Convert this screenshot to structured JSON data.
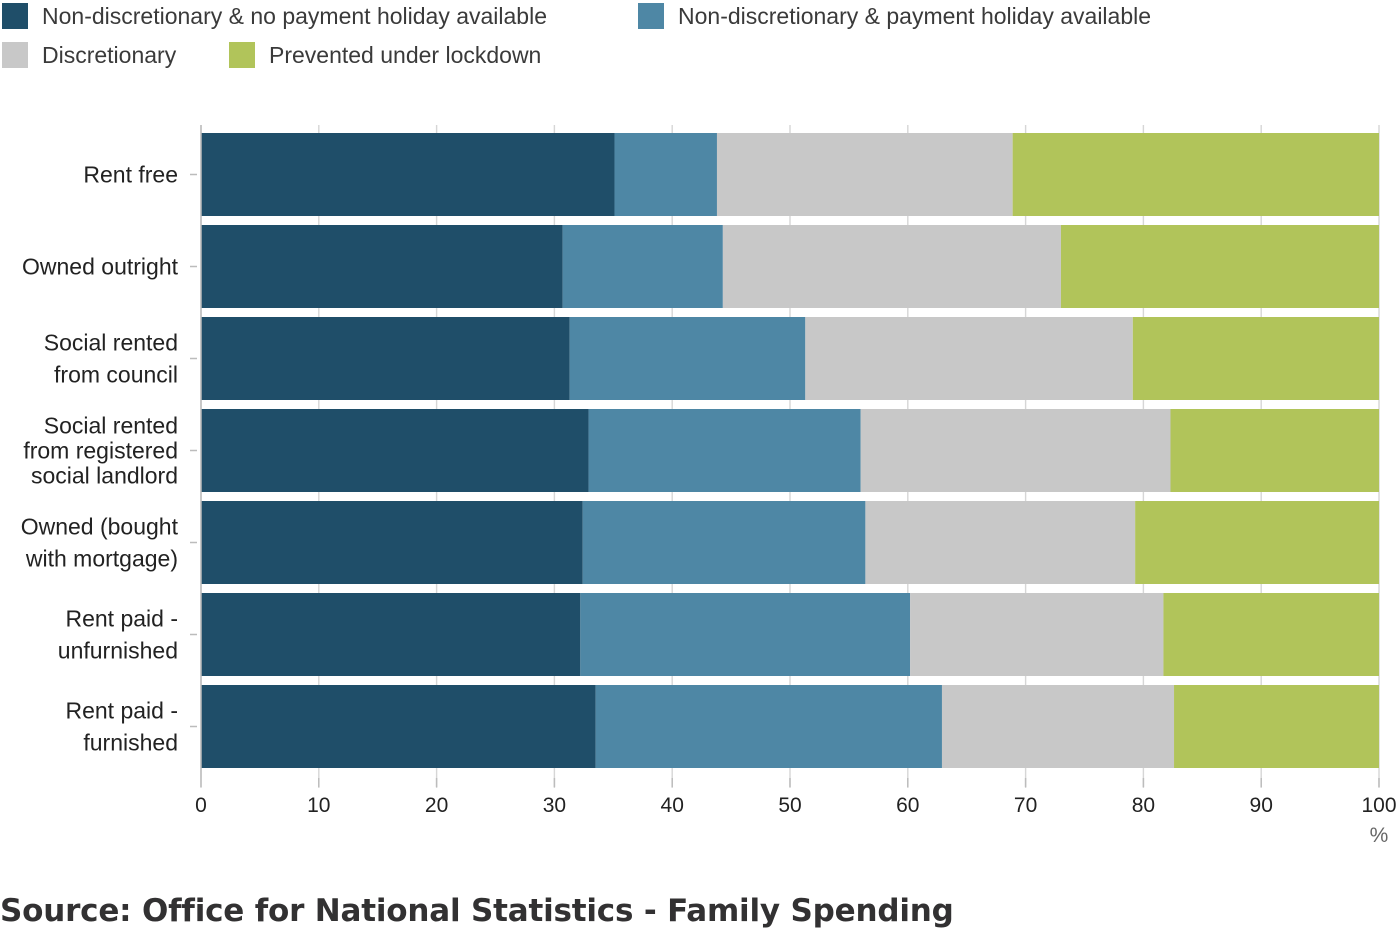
{
  "chart_data": {
    "type": "bar",
    "orientation": "horizontal",
    "stacked": true,
    "categories": [
      [
        "Rent free"
      ],
      [
        "Owned outright"
      ],
      [
        "Social rented",
        "from council"
      ],
      [
        "Social rented",
        "from registered",
        "social landlord"
      ],
      [
        "Owned (bought",
        "with mortgage)"
      ],
      [
        "Rent paid -",
        "unfurnished"
      ],
      [
        "Rent paid -",
        "furnished"
      ]
    ],
    "series": [
      {
        "name": "Non-discretionary & no payment holiday available",
        "color": "#1f4e69",
        "values": [
          35.1,
          30.7,
          31.3,
          32.9,
          32.4,
          32.2,
          33.5
        ]
      },
      {
        "name": "Non-discretionary & payment holiday available",
        "color": "#4e87a5",
        "values": [
          8.7,
          13.6,
          20.0,
          23.1,
          24.0,
          28.0,
          29.4
        ]
      },
      {
        "name": "Discretionary",
        "color": "#c8c8c8",
        "values": [
          25.1,
          28.7,
          27.8,
          26.3,
          22.9,
          21.5,
          19.7
        ]
      },
      {
        "name": "Prevented under lockdown",
        "color": "#b1c45a",
        "values": [
          31.1,
          27.0,
          20.9,
          17.7,
          20.7,
          18.3,
          17.4
        ]
      }
    ],
    "xlim": [
      0,
      100
    ],
    "xticks": [
      "0",
      "10",
      "20",
      "30",
      "40",
      "50",
      "60",
      "70",
      "80",
      "90",
      "100"
    ],
    "xlabel": "%",
    "grid": true,
    "legend_position": "top-left"
  },
  "source": "Source: Office for National Statistics - Family Spending"
}
